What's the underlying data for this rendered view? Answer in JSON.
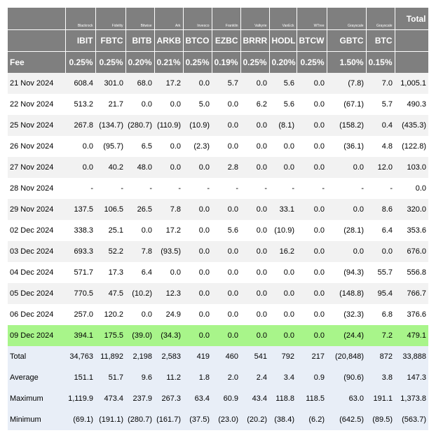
{
  "issuers": [
    "Blackrock",
    "Fidelity",
    "Bitwise",
    "Ark",
    "Invesco",
    "Franklin",
    "Valkyrie",
    "VanEck",
    "WTree",
    "Grayscale",
    "Grayscale"
  ],
  "total_label": "Total",
  "tickers": [
    "IBIT",
    "FBTC",
    "BITB",
    "ARKB",
    "BTCO",
    "EZBC",
    "BRRR",
    "HODL",
    "BTCW",
    "GBTC",
    "BTC"
  ],
  "fee_label": "Fee",
  "fees": [
    "0.25%",
    "0.25%",
    "0.20%",
    "0.21%",
    "0.25%",
    "0.19%",
    "0.25%",
    "0.20%",
    "0.25%",
    "1.50%",
    "0.15%"
  ],
  "rows": [
    {
      "date": "21 Nov 2024",
      "values": [
        "608.4",
        "301.0",
        "68.0",
        "17.2",
        "0.0",
        "5.7",
        "0.0",
        "5.6",
        "0.0",
        "(7.8)",
        "7.0"
      ],
      "total": "1,005.1"
    },
    {
      "date": "22 Nov 2024",
      "values": [
        "513.2",
        "21.7",
        "0.0",
        "0.0",
        "5.0",
        "0.0",
        "6.2",
        "5.6",
        "0.0",
        "(67.1)",
        "5.7"
      ],
      "total": "490.3"
    },
    {
      "date": "25 Nov 2024",
      "values": [
        "267.8",
        "(134.7)",
        "(280.7)",
        "(110.9)",
        "(10.9)",
        "0.0",
        "0.0",
        "(8.1)",
        "0.0",
        "(158.2)",
        "0.4"
      ],
      "total": "(435.3)"
    },
    {
      "date": "26 Nov 2024",
      "values": [
        "0.0",
        "(95.7)",
        "6.5",
        "0.0",
        "(2.3)",
        "0.0",
        "0.0",
        "0.0",
        "0.0",
        "(36.1)",
        "4.8"
      ],
      "total": "(122.8)"
    },
    {
      "date": "27 Nov 2024",
      "values": [
        "0.0",
        "40.2",
        "48.0",
        "0.0",
        "0.0",
        "2.8",
        "0.0",
        "0.0",
        "0.0",
        "0.0",
        "12.0"
      ],
      "total": "103.0"
    },
    {
      "date": "28 Nov 2024",
      "values": [
        "-",
        "-",
        "-",
        "-",
        "-",
        "-",
        "-",
        "-",
        "-",
        "-",
        "-"
      ],
      "total": "0.0"
    },
    {
      "date": "29 Nov 2024",
      "values": [
        "137.5",
        "106.5",
        "26.5",
        "7.8",
        "0.0",
        "0.0",
        "0.0",
        "33.1",
        "0.0",
        "0.0",
        "8.6"
      ],
      "total": "320.0"
    },
    {
      "date": "02 Dec 2024",
      "values": [
        "338.3",
        "25.1",
        "0.0",
        "17.2",
        "0.0",
        "5.6",
        "0.0",
        "(10.9)",
        "0.0",
        "(28.1)",
        "6.4"
      ],
      "total": "353.6"
    },
    {
      "date": "03 Dec 2024",
      "values": [
        "693.3",
        "52.2",
        "7.8",
        "(93.5)",
        "0.0",
        "0.0",
        "0.0",
        "16.2",
        "0.0",
        "0.0",
        "0.0"
      ],
      "total": "676.0"
    },
    {
      "date": "04 Dec 2024",
      "values": [
        "571.7",
        "17.3",
        "6.4",
        "0.0",
        "0.0",
        "0.0",
        "0.0",
        "0.0",
        "0.0",
        "(94.3)",
        "55.7"
      ],
      "total": "556.8"
    },
    {
      "date": "05 Dec 2024",
      "values": [
        "770.5",
        "47.5",
        "(10.2)",
        "12.3",
        "0.0",
        "0.0",
        "0.0",
        "0.0",
        "0.0",
        "(148.8)",
        "95.4"
      ],
      "total": "766.7"
    },
    {
      "date": "06 Dec 2024",
      "values": [
        "257.0",
        "120.2",
        "0.0",
        "24.9",
        "0.0",
        "0.0",
        "0.0",
        "0.0",
        "0.0",
        "(32.3)",
        "6.8"
      ],
      "total": "376.6"
    },
    {
      "date": "09 Dec 2024",
      "values": [
        "394.1",
        "175.5",
        "(39.0)",
        "(34.3)",
        "0.0",
        "0.0",
        "0.0",
        "0.0",
        "0.0",
        "(24.4)",
        "7.2"
      ],
      "total": "479.1",
      "highlight": true
    }
  ],
  "summary": [
    {
      "label": "Total",
      "values": [
        "34,763",
        "11,892",
        "2,198",
        "2,583",
        "419",
        "460",
        "541",
        "792",
        "217",
        "(20,848)",
        "872"
      ],
      "total": "33,888"
    },
    {
      "label": "Average",
      "values": [
        "151.1",
        "51.7",
        "9.6",
        "11.2",
        "1.8",
        "2.0",
        "2.4",
        "3.4",
        "0.9",
        "(90.6)",
        "3.8"
      ],
      "total": "147.3"
    },
    {
      "label": "Maximum",
      "values": [
        "1,119.9",
        "473.4",
        "237.9",
        "267.3",
        "63.4",
        "60.9",
        "43.4",
        "118.8",
        "118.5",
        "63.0",
        "191.1"
      ],
      "total": "1,373.8"
    },
    {
      "label": "Minimum",
      "values": [
        "(69.1)",
        "(191.1)",
        "(280.7)",
        "(161.7)",
        "(37.5)",
        "(23.0)",
        "(20.2)",
        "(38.4)",
        "(6.2)",
        "(642.5)",
        "(89.5)"
      ],
      "total": "(563.7)"
    }
  ]
}
